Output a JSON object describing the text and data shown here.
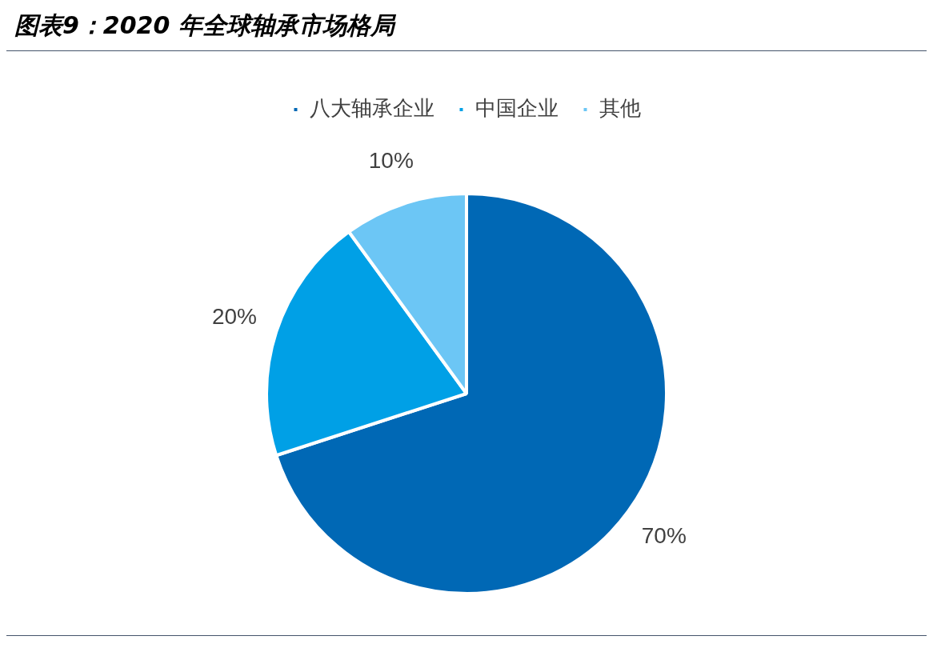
{
  "chart_data": {
    "type": "pie",
    "title": "图表9：2020 年全球轴承市场格局",
    "categories": [
      "八大轴承企业",
      "中国企业",
      "其他"
    ],
    "values": [
      70,
      20,
      10
    ],
    "colors": [
      "#0068b5",
      "#00a0e6",
      "#6cc6f5"
    ],
    "value_labels": [
      "70%",
      "20%",
      "10%"
    ],
    "legend": "top"
  }
}
